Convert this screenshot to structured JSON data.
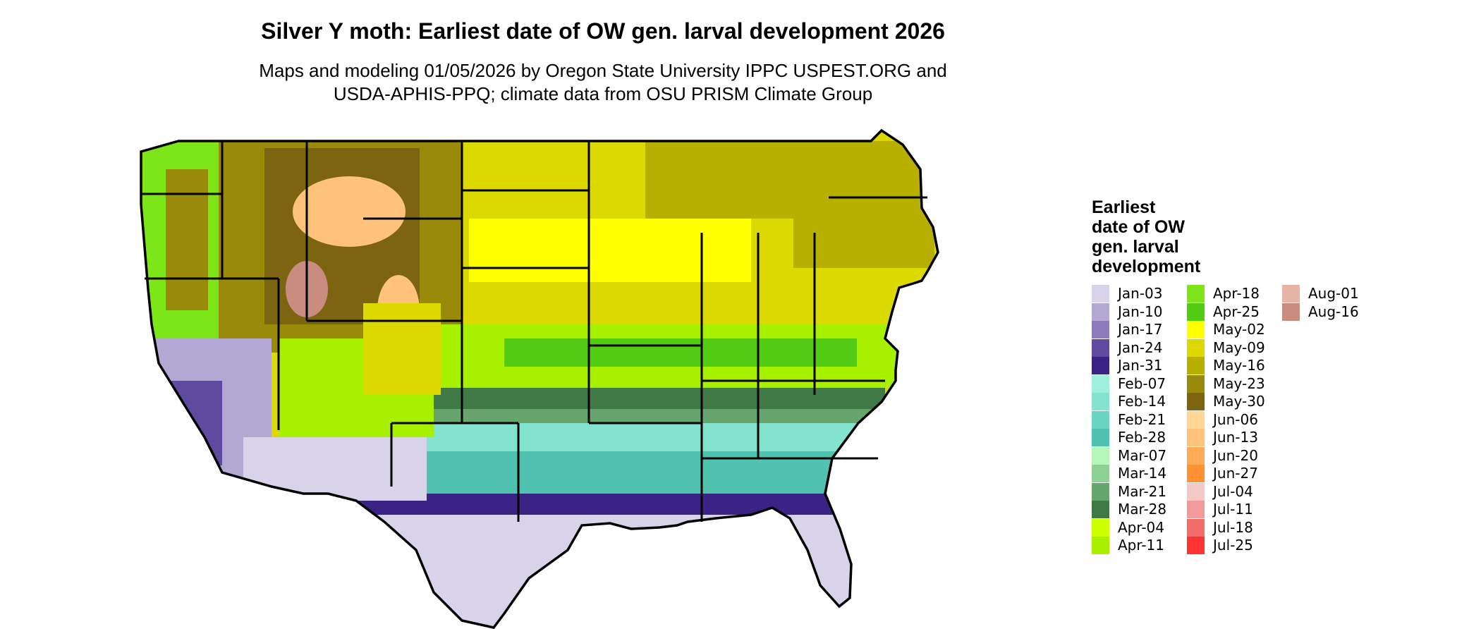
{
  "map": {
    "title": "Silver Y moth: Earliest date of OW gen. larval development 2026",
    "subtitle_lines": [
      "Maps and modeling 01/05/2026 by Oregon State University IPPC USPEST.ORG and",
      "USDA-APHIS-PPQ; climate data from OSU PRISM Climate Group"
    ],
    "region": "Contiguous United States",
    "legend": {
      "title_lines": [
        "Earliest",
        "date of OW",
        "gen. larval",
        "development"
      ],
      "columns": [
        [
          {
            "label": "Jan-03",
            "color": "#d8d3e8"
          },
          {
            "label": "Jan-10",
            "color": "#b3a8d1"
          },
          {
            "label": "Jan-17",
            "color": "#8c7bbb"
          },
          {
            "label": "Jan-24",
            "color": "#5e4b9f"
          },
          {
            "label": "Jan-31",
            "color": "#3b2285"
          },
          {
            "label": "Feb-07",
            "color": "#9ef0dd"
          },
          {
            "label": "Feb-14",
            "color": "#84e3cf"
          },
          {
            "label": "Feb-21",
            "color": "#69d4c0"
          },
          {
            "label": "Feb-28",
            "color": "#4fc2b0"
          },
          {
            "label": "Mar-07",
            "color": "#b5f5b7"
          },
          {
            "label": "Mar-14",
            "color": "#8fd095"
          },
          {
            "label": "Mar-21",
            "color": "#66a66d"
          },
          {
            "label": "Mar-28",
            "color": "#3f7a46"
          },
          {
            "label": "Apr-04",
            "color": "#ccff00"
          },
          {
            "label": "Apr-11",
            "color": "#a6f000"
          }
        ],
        [
          {
            "label": "Apr-18",
            "color": "#7de619"
          },
          {
            "label": "Apr-25",
            "color": "#52cc12"
          },
          {
            "label": "May-02",
            "color": "#ffff00"
          },
          {
            "label": "May-09",
            "color": "#dbd900"
          },
          {
            "label": "May-16",
            "color": "#b8b000"
          },
          {
            "label": "May-23",
            "color": "#9a8a0a"
          },
          {
            "label": "May-30",
            "color": "#7c6410"
          },
          {
            "label": "Jun-06",
            "color": "#ffd898"
          },
          {
            "label": "Jun-13",
            "color": "#ffc27a"
          },
          {
            "label": "Jun-20",
            "color": "#ffaa55"
          },
          {
            "label": "Jun-27",
            "color": "#ff9133"
          },
          {
            "label": "Jul-04",
            "color": "#f5c8c8"
          },
          {
            "label": "Jul-11",
            "color": "#f29a9a"
          },
          {
            "label": "Jul-18",
            "color": "#f26a6a"
          },
          {
            "label": "Jul-25",
            "color": "#ff3333"
          }
        ],
        [
          {
            "label": "Aug-01",
            "color": "#e6b4a6"
          },
          {
            "label": "Aug-16",
            "color": "#c98d80"
          }
        ]
      ]
    }
  }
}
